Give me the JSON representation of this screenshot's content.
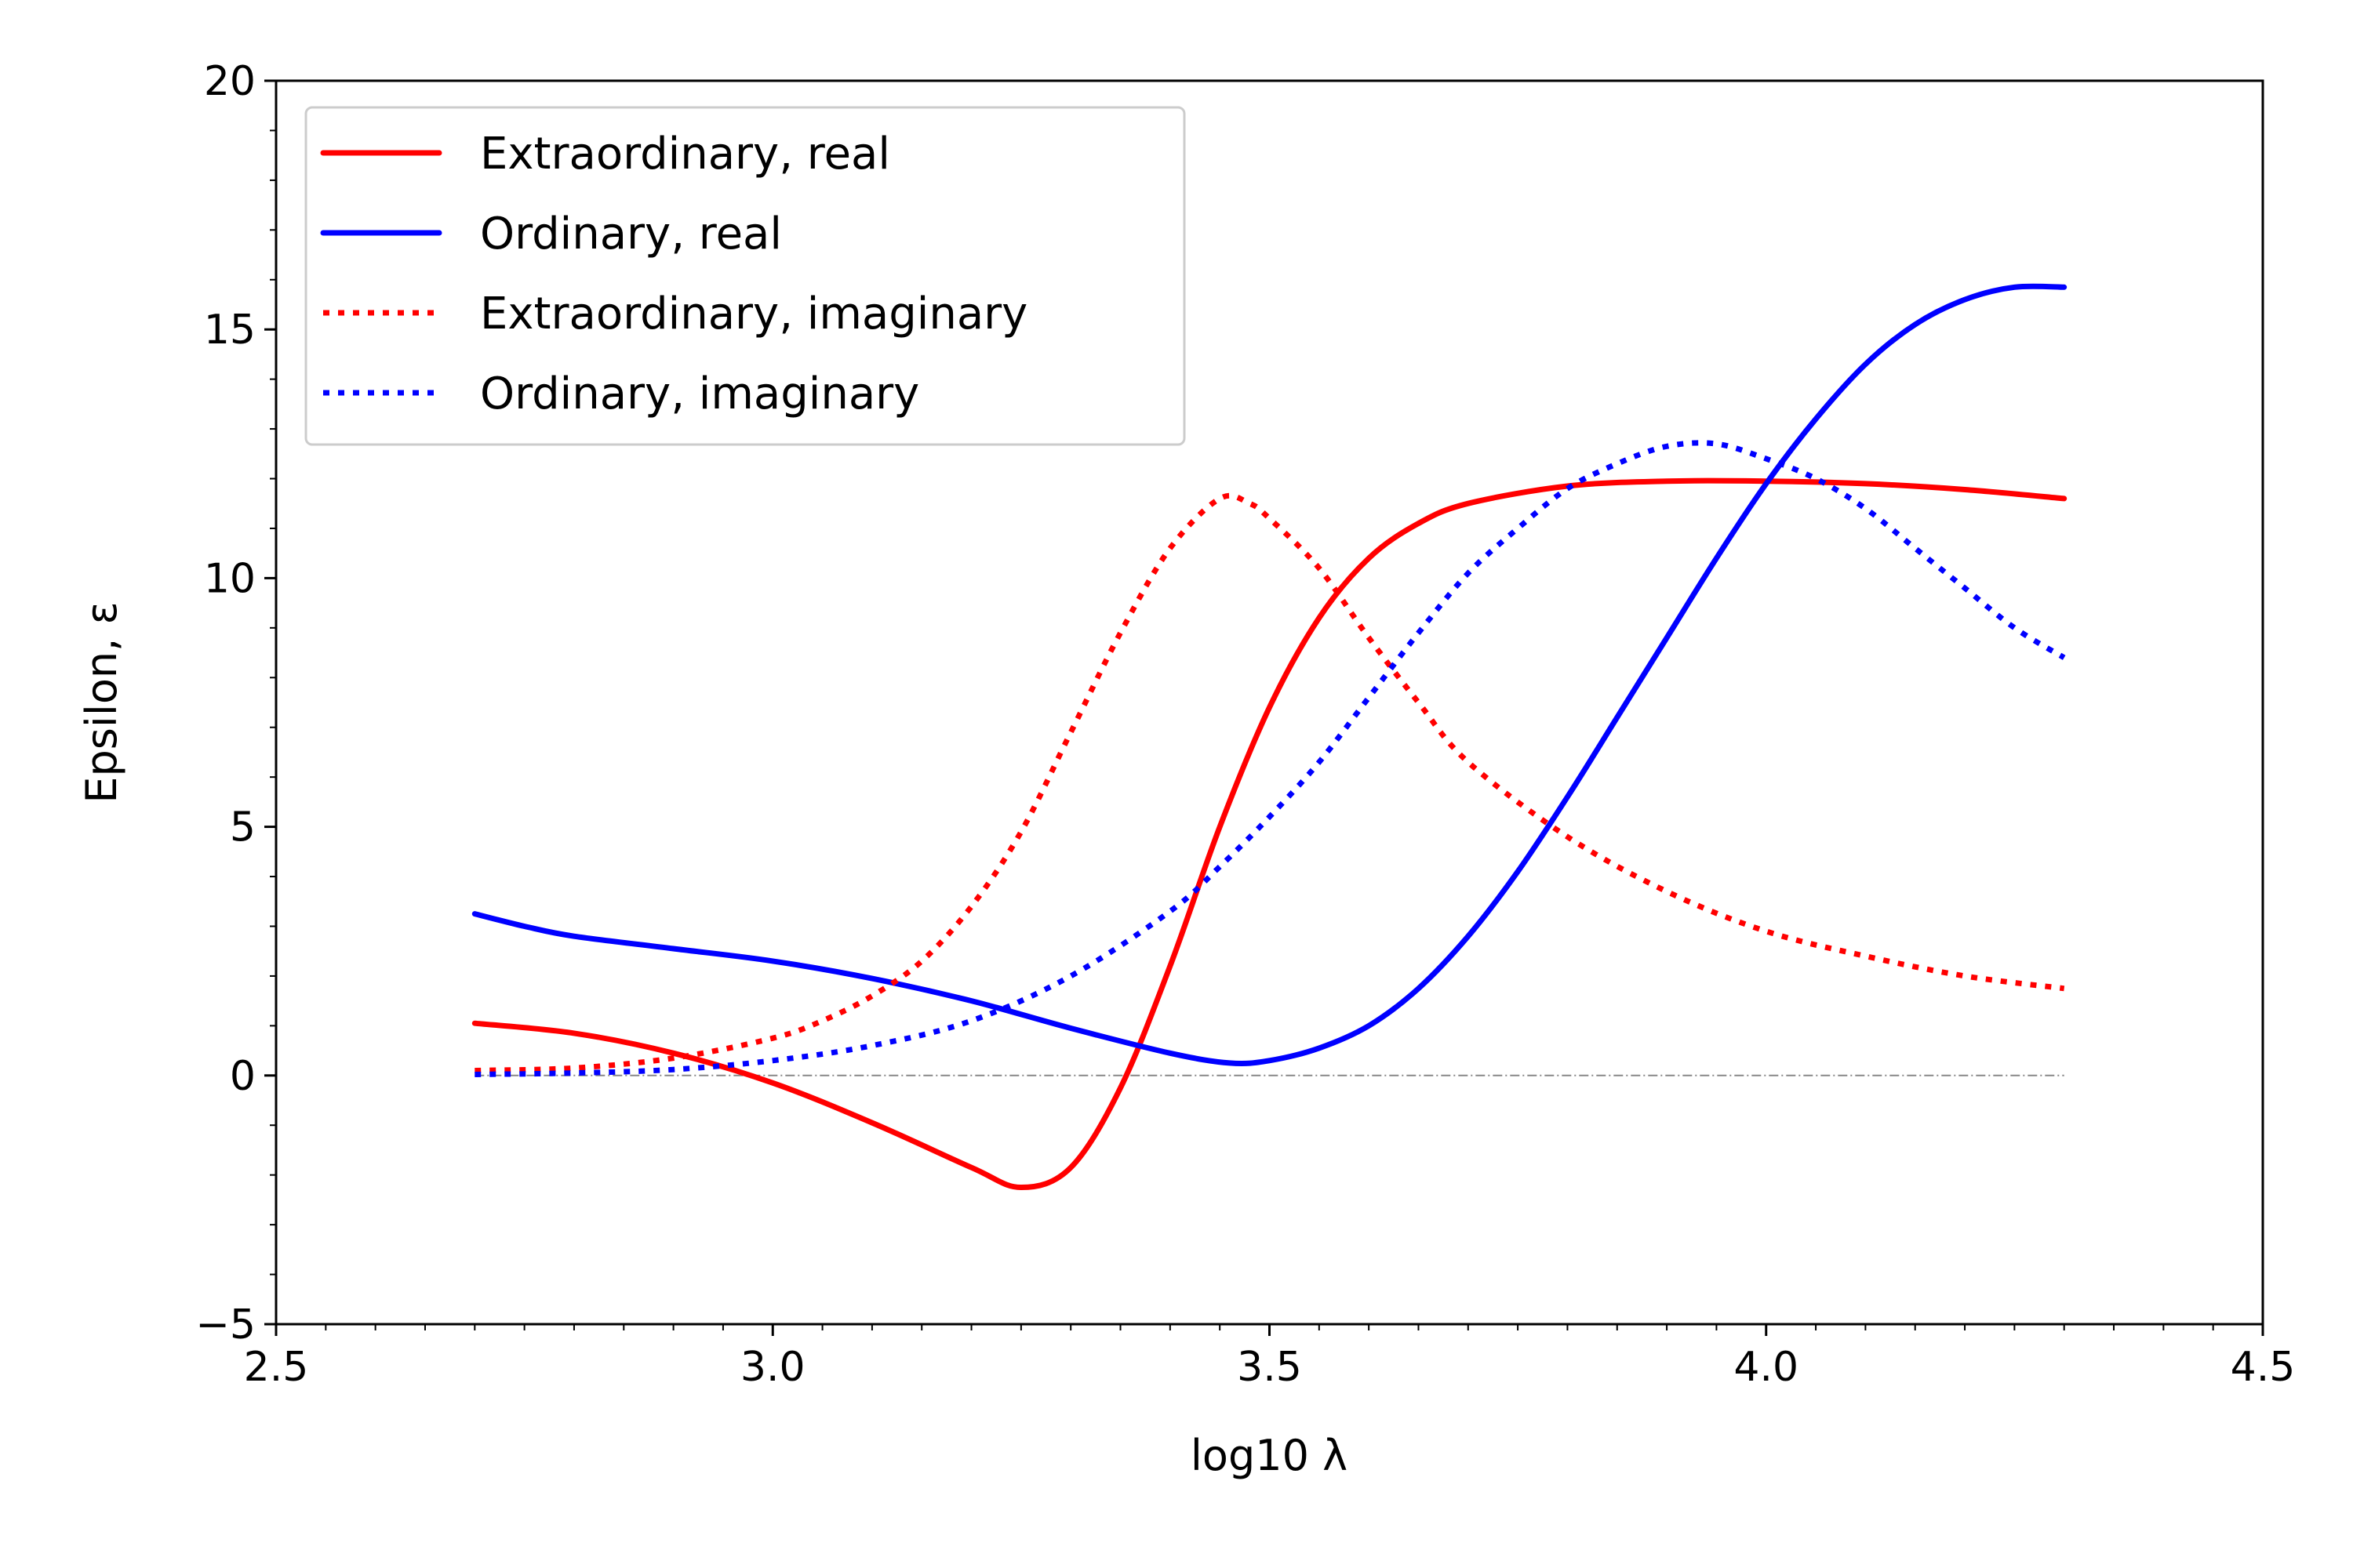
{
  "chart_data": {
    "type": "line",
    "title": "",
    "xlabel": "log10 λ",
    "ylabel": "Epsilon, ε",
    "xlim": [
      2.5,
      4.5
    ],
    "ylim": [
      -5,
      20
    ],
    "x_ticks": [
      "2.5",
      "3.0",
      "3.5",
      "4.0",
      "4.5"
    ],
    "y_ticks": [
      "−5",
      "0",
      "5",
      "10",
      "15",
      "20"
    ],
    "grid": false,
    "legend_position": "top-left",
    "reference_line": {
      "y": 0,
      "from_x": 2.7,
      "to_x": 4.3,
      "color": "#888888",
      "style": "dash-dot"
    },
    "series": [
      {
        "name": "Extraordinary, real",
        "color": "#ff0000",
        "style": "solid",
        "points": [
          [
            2.7,
            1.05
          ],
          [
            2.8,
            0.85
          ],
          [
            2.9,
            0.45
          ],
          [
            3.0,
            -0.15
          ],
          [
            3.1,
            -0.95
          ],
          [
            3.2,
            -1.85
          ],
          [
            3.25,
            -2.25
          ],
          [
            3.3,
            -1.85
          ],
          [
            3.35,
            -0.25
          ],
          [
            3.4,
            2.2
          ],
          [
            3.45,
            5.0
          ],
          [
            3.5,
            7.4
          ],
          [
            3.55,
            9.2
          ],
          [
            3.6,
            10.4
          ],
          [
            3.65,
            11.1
          ],
          [
            3.7,
            11.5
          ],
          [
            3.8,
            11.85
          ],
          [
            3.9,
            11.95
          ],
          [
            4.0,
            11.95
          ],
          [
            4.1,
            11.9
          ],
          [
            4.2,
            11.78
          ],
          [
            4.3,
            11.6
          ]
        ]
      },
      {
        "name": "Ordinary, real",
        "color": "#0000ff",
        "style": "solid",
        "points": [
          [
            2.7,
            3.25
          ],
          [
            2.75,
            3.0
          ],
          [
            2.8,
            2.8
          ],
          [
            2.9,
            2.55
          ],
          [
            3.0,
            2.3
          ],
          [
            3.1,
            1.95
          ],
          [
            3.2,
            1.5
          ],
          [
            3.3,
            0.95
          ],
          [
            3.4,
            0.45
          ],
          [
            3.46,
            0.25
          ],
          [
            3.5,
            0.3
          ],
          [
            3.55,
            0.55
          ],
          [
            3.6,
            1.0
          ],
          [
            3.65,
            1.75
          ],
          [
            3.7,
            2.8
          ],
          [
            3.75,
            4.1
          ],
          [
            3.8,
            5.6
          ],
          [
            3.85,
            7.2
          ],
          [
            3.9,
            8.8
          ],
          [
            3.95,
            10.4
          ],
          [
            4.0,
            11.9
          ],
          [
            4.05,
            13.2
          ],
          [
            4.1,
            14.3
          ],
          [
            4.15,
            15.1
          ],
          [
            4.2,
            15.6
          ],
          [
            4.25,
            15.85
          ],
          [
            4.3,
            15.85
          ]
        ]
      },
      {
        "name": "Extraordinary, imaginary",
        "color": "#ff0000",
        "style": "dotted",
        "points": [
          [
            2.7,
            0.1
          ],
          [
            2.8,
            0.15
          ],
          [
            2.9,
            0.35
          ],
          [
            3.0,
            0.75
          ],
          [
            3.05,
            1.1
          ],
          [
            3.1,
            1.6
          ],
          [
            3.15,
            2.3
          ],
          [
            3.2,
            3.4
          ],
          [
            3.25,
            4.9
          ],
          [
            3.3,
            6.9
          ],
          [
            3.35,
            8.9
          ],
          [
            3.4,
            10.6
          ],
          [
            3.45,
            11.6
          ],
          [
            3.48,
            11.5
          ],
          [
            3.5,
            11.2
          ],
          [
            3.55,
            10.2
          ],
          [
            3.6,
            8.8
          ],
          [
            3.65,
            7.5
          ],
          [
            3.7,
            6.3
          ],
          [
            3.8,
            4.8
          ],
          [
            3.9,
            3.7
          ],
          [
            4.0,
            2.9
          ],
          [
            4.1,
            2.4
          ],
          [
            4.2,
            2.0
          ],
          [
            4.3,
            1.75
          ]
        ]
      },
      {
        "name": "Ordinary, imaginary",
        "color": "#0000ff",
        "style": "dotted",
        "points": [
          [
            2.7,
            0.02
          ],
          [
            2.8,
            0.05
          ],
          [
            2.9,
            0.12
          ],
          [
            3.0,
            0.3
          ],
          [
            3.1,
            0.6
          ],
          [
            3.2,
            1.1
          ],
          [
            3.3,
            2.0
          ],
          [
            3.4,
            3.3
          ],
          [
            3.45,
            4.2
          ],
          [
            3.5,
            5.2
          ],
          [
            3.55,
            6.3
          ],
          [
            3.6,
            7.6
          ],
          [
            3.65,
            8.9
          ],
          [
            3.7,
            10.1
          ],
          [
            3.75,
            11.0
          ],
          [
            3.8,
            11.8
          ],
          [
            3.85,
            12.3
          ],
          [
            3.9,
            12.65
          ],
          [
            3.95,
            12.7
          ],
          [
            4.0,
            12.4
          ],
          [
            4.05,
            12.0
          ],
          [
            4.1,
            11.4
          ],
          [
            4.15,
            10.6
          ],
          [
            4.2,
            9.8
          ],
          [
            4.25,
            9.0
          ],
          [
            4.3,
            8.4
          ]
        ]
      }
    ]
  }
}
